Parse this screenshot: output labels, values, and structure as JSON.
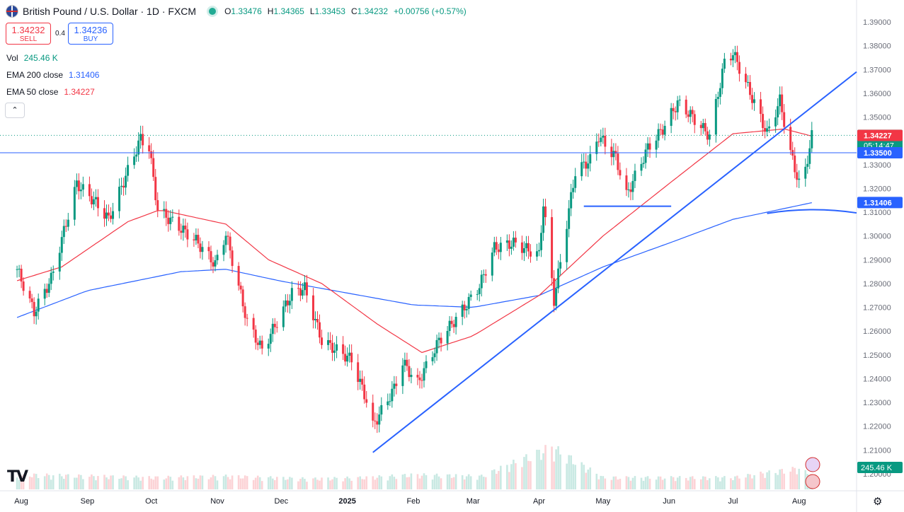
{
  "header": {
    "title": "British Pound / U.S. Dollar · 1D · FXCM",
    "open_label": "O",
    "open": "1.33476",
    "high_label": "H",
    "high": "1.34365",
    "low_label": "L",
    "low": "1.33453",
    "close_label": "C",
    "close": "1.34232",
    "change": "+0.00756 (+0.57%)"
  },
  "trade": {
    "sell_price": "1.34232",
    "sell_label": "SELL",
    "spread": "0.4",
    "buy_price": "1.34236",
    "buy_label": "BUY"
  },
  "indicators": {
    "vol_label": "Vol",
    "vol_value": "245.46 K",
    "ema200_label": "EMA 200 close",
    "ema200_value": "1.31406",
    "ema50_label": "EMA 50 close",
    "ema50_value": "1.34227"
  },
  "colors": {
    "up": "#089981",
    "down": "#f23645",
    "ema200": "#2962ff",
    "ema50": "#f23645",
    "drawing": "#2962ff"
  },
  "icons": [
    "flag-icon",
    "market-open-icon",
    "collapse-chevron-icon",
    "tradingview-logo-icon",
    "settings-gear-icon",
    "currency-icon"
  ],
  "chart_data": {
    "type": "candlestick",
    "title": "British Pound / U.S. Dollar · 1D · FXCM",
    "ylim": [
      1.2,
      1.39
    ],
    "y_ticks": [
      "1.39000",
      "1.38000",
      "1.37000",
      "1.36000",
      "1.35000",
      "1.34000",
      "1.33000",
      "1.32000",
      "1.31000",
      "1.30000",
      "1.29000",
      "1.28000",
      "1.27000",
      "1.26000",
      "1.25000",
      "1.24000",
      "1.23000",
      "1.22000",
      "1.21000",
      "1.20000"
    ],
    "x_ticks": [
      "Aug",
      "Sep",
      "Oct",
      "Nov",
      "Dec",
      "2025",
      "Feb",
      "Mar",
      "Apr",
      "May",
      "Jun",
      "Jul",
      "Aug"
    ],
    "price_path": [
      [
        "2024-07-30",
        1.286
      ],
      [
        "2024-08-07",
        1.268
      ],
      [
        "2024-08-15",
        1.282
      ],
      [
        "2024-08-27",
        1.322
      ],
      [
        "2024-09-05",
        1.314
      ],
      [
        "2024-09-11",
        1.307
      ],
      [
        "2024-09-26",
        1.341
      ],
      [
        "2024-09-30",
        1.337
      ],
      [
        "2024-10-04",
        1.311
      ],
      [
        "2024-10-22",
        1.298
      ],
      [
        "2024-10-31",
        1.288
      ],
      [
        "2024-11-05",
        1.301
      ],
      [
        "2024-11-15",
        1.264
      ],
      [
        "2024-11-22",
        1.252
      ],
      [
        "2024-12-06",
        1.276
      ],
      [
        "2024-12-12",
        1.278
      ],
      [
        "2024-12-20",
        1.256
      ],
      [
        "2025-01-03",
        1.248
      ],
      [
        "2025-01-10",
        1.231
      ],
      [
        "2025-01-13",
        1.22
      ],
      [
        "2025-01-23",
        1.236
      ],
      [
        "2025-01-27",
        1.247
      ],
      [
        "2025-02-03",
        1.238
      ],
      [
        "2025-02-13",
        1.256
      ],
      [
        "2025-02-25",
        1.27
      ],
      [
        "2025-03-04",
        1.279
      ],
      [
        "2025-03-11",
        1.295
      ],
      [
        "2025-03-20",
        1.297
      ],
      [
        "2025-04-01",
        1.292
      ],
      [
        "2025-04-03",
        1.314
      ],
      [
        "2025-04-08",
        1.273
      ],
      [
        "2025-04-18",
        1.327
      ],
      [
        "2025-04-25",
        1.332
      ],
      [
        "2025-04-29",
        1.342
      ],
      [
        "2025-05-07",
        1.333
      ],
      [
        "2025-05-12",
        1.317
      ],
      [
        "2025-05-22",
        1.337
      ],
      [
        "2025-05-29",
        1.345
      ],
      [
        "2025-06-05",
        1.356
      ],
      [
        "2025-06-11",
        1.351
      ],
      [
        "2025-06-20",
        1.342
      ],
      [
        "2025-06-27",
        1.373
      ],
      [
        "2025-07-01",
        1.377
      ],
      [
        "2025-07-11",
        1.356
      ],
      [
        "2025-07-17",
        1.343
      ],
      [
        "2025-07-23",
        1.357
      ],
      [
        "2025-07-28",
        1.335
      ],
      [
        "2025-08-01",
        1.322
      ],
      [
        "2025-08-04",
        1.328
      ],
      [
        "2025-08-07",
        1.342
      ]
    ],
    "ema200_path": [
      [
        "2024-07-22",
        1.263
      ],
      [
        "2024-09-01",
        1.277
      ],
      [
        "2024-10-15",
        1.285
      ],
      [
        "2024-11-05",
        1.286
      ],
      [
        "2024-12-01",
        1.281
      ],
      [
        "2025-01-01",
        1.276
      ],
      [
        "2025-02-01",
        1.271
      ],
      [
        "2025-03-01",
        1.27
      ],
      [
        "2025-04-01",
        1.275
      ],
      [
        "2025-05-01",
        1.287
      ],
      [
        "2025-06-01",
        1.297
      ],
      [
        "2025-07-01",
        1.307
      ],
      [
        "2025-08-07",
        1.314
      ]
    ],
    "ema50_path": [
      [
        "2024-07-22",
        1.279
      ],
      [
        "2024-08-20",
        1.287
      ],
      [
        "2024-09-20",
        1.306
      ],
      [
        "2024-10-05",
        1.311
      ],
      [
        "2024-11-05",
        1.305
      ],
      [
        "2024-11-25",
        1.29
      ],
      [
        "2024-12-20",
        1.28
      ],
      [
        "2025-01-15",
        1.263
      ],
      [
        "2025-02-05",
        1.251
      ],
      [
        "2025-03-01",
        1.258
      ],
      [
        "2025-04-01",
        1.275
      ],
      [
        "2025-05-01",
        1.3
      ],
      [
        "2025-06-01",
        1.322
      ],
      [
        "2025-07-01",
        1.343
      ],
      [
        "2025-07-25",
        1.345
      ],
      [
        "2025-08-07",
        1.342
      ]
    ],
    "volume_profile": [
      [
        "2024-07-22",
        0.35
      ],
      [
        "2024-08-05",
        0.55
      ],
      [
        "2024-09-05",
        0.5
      ],
      [
        "2024-10-01",
        0.45
      ],
      [
        "2024-11-05",
        0.5
      ],
      [
        "2024-12-15",
        0.4
      ],
      [
        "2025-01-10",
        0.45
      ],
      [
        "2025-02-01",
        0.55
      ],
      [
        "2025-03-05",
        0.5
      ],
      [
        "2025-04-07",
        1.6
      ],
      [
        "2025-05-01",
        0.45
      ],
      [
        "2025-06-01",
        0.45
      ],
      [
        "2025-07-01",
        0.45
      ],
      [
        "2025-08-01",
        0.8
      ],
      [
        "2025-08-07",
        0.5
      ]
    ],
    "trendline": [
      [
        "2025-01-13",
        1.209
      ],
      [
        "2025-08-28",
        1.369
      ]
    ],
    "support_line": [
      [
        "2025-04-22",
        1.3125
      ],
      [
        "2025-06-02",
        1.3125
      ]
    ],
    "ema200_curve_line": [
      [
        "2025-07-17",
        1.3103
      ],
      [
        "2025-08-28",
        1.3097
      ]
    ],
    "price_labels": [
      {
        "text": "1.34232",
        "sub": "05:14:47",
        "value": 1.34232,
        "color": "#089981"
      },
      {
        "text": "1.34227",
        "value": 1.34227,
        "color": "#f23645"
      },
      {
        "text": "1.33500",
        "value": 1.335,
        "color": "#2962ff"
      },
      {
        "text": "1.31406",
        "value": 1.31406,
        "color": "#2962ff"
      }
    ],
    "volume_label": "245.46 K",
    "horizontal_line": 1.335,
    "dotted_line": 1.34232,
    "axis_start": "2024-07-22",
    "axis_end": "2025-08-28"
  }
}
